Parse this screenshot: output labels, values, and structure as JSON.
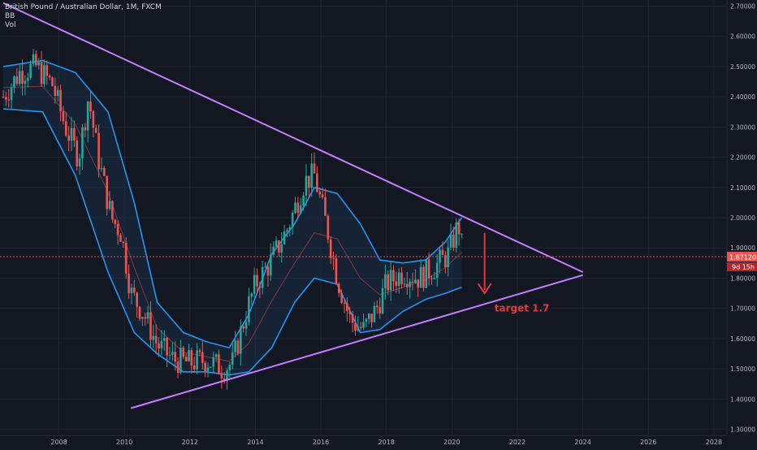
{
  "legend": {
    "symbol_line": "British Pound / Australian Dollar, 1M, FXCM",
    "indicator_bb": "BB",
    "indicator_vol": "Vol"
  },
  "colors": {
    "background": "#131722",
    "grid": "#1f2433",
    "axis_text": "#b2b5be",
    "candle_up": "#26a69a",
    "candle_down": "#ef5350",
    "bb_band": "#2196f3",
    "bb_fill": "#1e3a5a",
    "bb_basis": "#b04040",
    "trendline": "#c77dff",
    "arrow_annotation": "#e53935",
    "price_line": "#ef5350",
    "price_tag": "#ef5350"
  },
  "chart_data": {
    "type": "candlestick",
    "title": "British Pound / Australian Dollar, 1M, FXCM",
    "x_ticks": [
      "2008",
      "2010",
      "2012",
      "2014",
      "2016",
      "2018",
      "2020",
      "2022",
      "2024",
      "2026",
      "2028"
    ],
    "y_ticks": [
      "2.70000",
      "2.60000",
      "2.50000",
      "2.40000",
      "2.30000",
      "2.20000",
      "2.10000",
      "2.00000",
      "1.90000",
      "1.80000",
      "1.70000",
      "1.60000",
      "1.50000",
      "1.40000",
      "1.30000"
    ],
    "xlim": [
      2006.2,
      2028.4
    ],
    "ylim": [
      1.28,
      2.72
    ],
    "grid": true,
    "last_price": "1.87120",
    "countdown": "9d 15h",
    "price_path": [
      [
        2006.3,
        2.4
      ],
      [
        2006.8,
        2.48
      ],
      [
        2007.3,
        2.5
      ],
      [
        2007.8,
        2.44
      ],
      [
        2008.2,
        2.3
      ],
      [
        2008.6,
        2.2
      ],
      [
        2008.9,
        2.4
      ],
      [
        2009.2,
        2.2
      ],
      [
        2009.6,
        2.0
      ],
      [
        2009.9,
        1.95
      ],
      [
        2010.2,
        1.75
      ],
      [
        2010.6,
        1.68
      ],
      [
        2011.0,
        1.58
      ],
      [
        2011.5,
        1.53
      ],
      [
        2012.0,
        1.52
      ],
      [
        2012.5,
        1.53
      ],
      [
        2013.0,
        1.5
      ],
      [
        2013.3,
        1.52
      ],
      [
        2013.7,
        1.68
      ],
      [
        2014.0,
        1.78
      ],
      [
        2014.5,
        1.86
      ],
      [
        2015.0,
        1.97
      ],
      [
        2015.5,
        2.12
      ],
      [
        2015.8,
        2.14
      ],
      [
        2016.2,
        1.96
      ],
      [
        2016.5,
        1.8
      ],
      [
        2016.9,
        1.66
      ],
      [
        2017.3,
        1.63
      ],
      [
        2017.7,
        1.7
      ],
      [
        2018.0,
        1.78
      ],
      [
        2018.5,
        1.82
      ],
      [
        2019.0,
        1.8
      ],
      [
        2019.5,
        1.84
      ],
      [
        2019.9,
        1.88
      ],
      [
        2020.2,
        1.98
      ],
      [
        2020.35,
        1.87
      ]
    ],
    "bollinger_upper": [
      [
        2006.3,
        2.5
      ],
      [
        2007.5,
        2.52
      ],
      [
        2008.5,
        2.48
      ],
      [
        2009.5,
        2.35
      ],
      [
        2010.3,
        2.05
      ],
      [
        2011.0,
        1.72
      ],
      [
        2011.8,
        1.62
      ],
      [
        2012.5,
        1.59
      ],
      [
        2013.2,
        1.57
      ],
      [
        2013.8,
        1.68
      ],
      [
        2014.5,
        1.88
      ],
      [
        2015.2,
        1.98
      ],
      [
        2015.8,
        2.1
      ],
      [
        2016.5,
        2.08
      ],
      [
        2017.2,
        1.98
      ],
      [
        2017.8,
        1.86
      ],
      [
        2018.5,
        1.85
      ],
      [
        2019.2,
        1.86
      ],
      [
        2019.8,
        1.92
      ],
      [
        2020.3,
        2.0
      ]
    ],
    "bollinger_lower": [
      [
        2006.3,
        2.36
      ],
      [
        2007.5,
        2.35
      ],
      [
        2008.5,
        2.14
      ],
      [
        2009.5,
        1.82
      ],
      [
        2010.3,
        1.62
      ],
      [
        2011.0,
        1.55
      ],
      [
        2011.8,
        1.49
      ],
      [
        2012.5,
        1.49
      ],
      [
        2013.2,
        1.48
      ],
      [
        2013.8,
        1.49
      ],
      [
        2014.5,
        1.57
      ],
      [
        2015.2,
        1.72
      ],
      [
        2015.8,
        1.8
      ],
      [
        2016.5,
        1.78
      ],
      [
        2017.2,
        1.62
      ],
      [
        2017.8,
        1.63
      ],
      [
        2018.5,
        1.69
      ],
      [
        2019.2,
        1.73
      ],
      [
        2019.8,
        1.75
      ],
      [
        2020.3,
        1.77
      ]
    ],
    "trendlines": [
      {
        "name": "upper",
        "from": [
          2006.3,
          2.71
        ],
        "to": [
          2024.0,
          1.82
        ]
      },
      {
        "name": "lower",
        "from": [
          2010.2,
          1.37
        ],
        "to": [
          2024.0,
          1.81
        ]
      }
    ],
    "annotation": {
      "text": "target 1.7",
      "arrow_from": [
        2021.0,
        1.95
      ],
      "arrow_to": [
        2021.0,
        1.75
      ],
      "label_at": [
        2021.3,
        1.69
      ]
    }
  }
}
